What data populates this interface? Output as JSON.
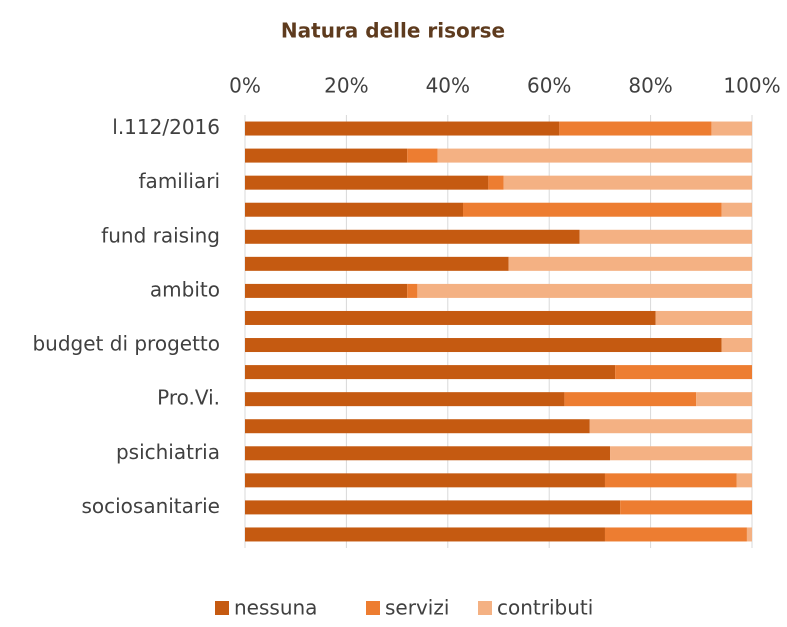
{
  "chart_data": {
    "type": "stacked_barh",
    "title": "Natura delle risorse",
    "categories": [
      "l.112/2016",
      null,
      "familiari",
      null,
      "fund raising",
      null,
      "ambito",
      null,
      "budget di progetto",
      null,
      "Pro.Vi.",
      null,
      "psichiatria",
      null,
      "sociosanitarie",
      null
    ],
    "series": [
      {
        "name": "nessuna",
        "color": "#c55a11",
        "values": [
          62,
          32,
          48,
          43,
          66,
          52,
          32,
          81,
          94,
          73,
          63,
          68,
          72,
          71,
          74,
          71
        ]
      },
      {
        "name": "servizi",
        "color": "#ed7d31",
        "values": [
          30,
          6,
          3,
          51,
          0,
          0,
          2,
          0,
          0,
          27,
          26,
          0,
          0,
          26,
          26,
          28
        ]
      },
      {
        "name": "contributi",
        "color": "#f4b183",
        "values": [
          8,
          62,
          49,
          6,
          34,
          48,
          66,
          19,
          6,
          0,
          11,
          32,
          28,
          3,
          0,
          1
        ]
      }
    ],
    "xlim": [
      0,
      100
    ],
    "xticks": [
      {
        "value": 0,
        "label": "0%"
      },
      {
        "value": 20,
        "label": "20%"
      },
      {
        "value": 40,
        "label": "40%"
      },
      {
        "value": 60,
        "label": "60%"
      },
      {
        "value": 80,
        "label": "80%"
      },
      {
        "value": 100,
        "label": "100%"
      }
    ],
    "grid": true,
    "legend": "bottom"
  }
}
